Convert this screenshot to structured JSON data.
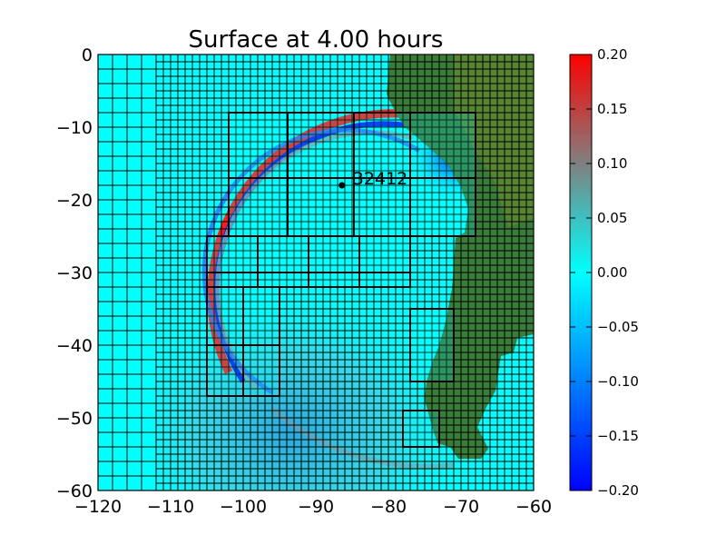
{
  "chart_data": {
    "type": "heatmap",
    "title": "Surface at 4.00 hours",
    "xlabel": "",
    "ylabel": "",
    "xlim": [
      -120,
      -60
    ],
    "ylim": [
      -60,
      0
    ],
    "x_ticks": [
      -120,
      -110,
      -100,
      -90,
      -80,
      -70,
      -60
    ],
    "y_ticks": [
      -60,
      -50,
      -40,
      -30,
      -20,
      -10,
      0
    ],
    "x_tick_labels": [
      "−120",
      "−110",
      "−100",
      "−90",
      "−80",
      "−70",
      "−60"
    ],
    "y_tick_labels": [
      "−60",
      "−50",
      "−40",
      "−30",
      "−20",
      "−10",
      "0"
    ],
    "colorbar": {
      "vmin": -0.2,
      "vmax": 0.2,
      "ticks": [
        0.2,
        0.15,
        0.1,
        0.05,
        0.0,
        -0.05,
        -0.1,
        -0.15,
        -0.2
      ],
      "tick_labels": [
        "0.20",
        "0.15",
        "0.10",
        "0.05",
        "0.00",
        "−0.05",
        "−0.10",
        "−0.15",
        "−0.20"
      ]
    },
    "gauge": {
      "label": "32412",
      "x": -86.4,
      "y": -18.0
    },
    "colors": {
      "ocean_zero": "#00ffff",
      "land": "#3a7d3a",
      "positive": "#ff0000",
      "negative": "#0000ff",
      "grid": "#000000"
    }
  }
}
